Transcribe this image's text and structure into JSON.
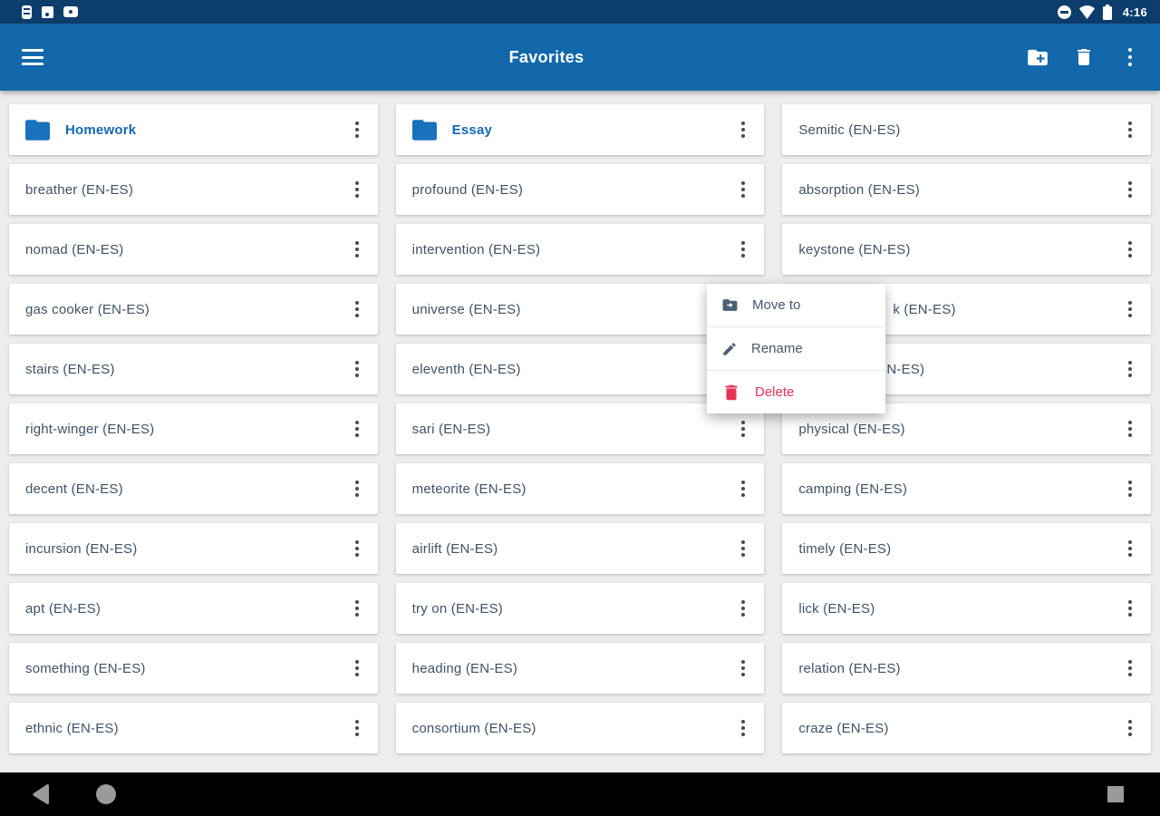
{
  "status_bar": {
    "time": "4:16",
    "left_icons": [
      "device-notification-icon",
      "screenshot-notification-icon",
      "video-notification-icon"
    ],
    "right_icons": [
      "do-not-disturb-icon",
      "wifi-icon",
      "battery-icon"
    ]
  },
  "app_bar": {
    "title": "Favorites",
    "actions": [
      "new-folder",
      "delete",
      "overflow-menu"
    ]
  },
  "grid": {
    "columns": [
      {
        "items": [
          {
            "type": "folder",
            "label": "Homework"
          },
          {
            "type": "entry",
            "label": "breather (EN-ES)"
          },
          {
            "type": "entry",
            "label": "nomad (EN-ES)"
          },
          {
            "type": "entry",
            "label": "gas cooker (EN-ES)"
          },
          {
            "type": "entry",
            "label": "stairs (EN-ES)"
          },
          {
            "type": "entry",
            "label": "right-winger (EN-ES)"
          },
          {
            "type": "entry",
            "label": "decent (EN-ES)"
          },
          {
            "type": "entry",
            "label": "incursion (EN-ES)"
          },
          {
            "type": "entry",
            "label": "apt (EN-ES)"
          },
          {
            "type": "entry",
            "label": "something (EN-ES)"
          },
          {
            "type": "entry",
            "label": "ethnic (EN-ES)"
          }
        ]
      },
      {
        "items": [
          {
            "type": "folder",
            "label": "Essay"
          },
          {
            "type": "entry",
            "label": "profound (EN-ES)"
          },
          {
            "type": "entry",
            "label": "intervention (EN-ES)"
          },
          {
            "type": "entry",
            "label": "universe (EN-ES)"
          },
          {
            "type": "entry",
            "label": "eleventh (EN-ES)"
          },
          {
            "type": "entry",
            "label": "sari (EN-ES)"
          },
          {
            "type": "entry",
            "label": "meteorite (EN-ES)"
          },
          {
            "type": "entry",
            "label": "airlift (EN-ES)"
          },
          {
            "type": "entry",
            "label": "try on (EN-ES)"
          },
          {
            "type": "entry",
            "label": "heading (EN-ES)"
          },
          {
            "type": "entry",
            "label": "consortium (EN-ES)"
          }
        ]
      },
      {
        "items": [
          {
            "type": "entry",
            "label": "Semitic (EN-ES)"
          },
          {
            "type": "entry",
            "label": "absorption (EN-ES)"
          },
          {
            "type": "entry",
            "label": "keystone (EN-ES)"
          },
          {
            "type": "entry",
            "label": "k (EN-ES)",
            "occluded_indent": 104
          },
          {
            "type": "entry",
            "label": "N-ES)",
            "occluded_indent": 97
          },
          {
            "type": "entry",
            "label": "physical (EN-ES)"
          },
          {
            "type": "entry",
            "label": "camping (EN-ES)"
          },
          {
            "type": "entry",
            "label": "timely (EN-ES)"
          },
          {
            "type": "entry",
            "label": "lick (EN-ES)"
          },
          {
            "type": "entry",
            "label": "relation (EN-ES)"
          },
          {
            "type": "entry",
            "label": "craze (EN-ES)"
          }
        ]
      }
    ]
  },
  "context_menu": {
    "items": [
      {
        "label": "Move to",
        "icon": "move-to-folder-icon"
      },
      {
        "label": "Rename",
        "icon": "pencil-icon"
      },
      {
        "label": "Delete",
        "icon": "trash-icon",
        "danger": true
      }
    ]
  },
  "nav_bar": {
    "buttons": [
      "back",
      "home",
      "recents"
    ]
  },
  "colors": {
    "status_bar": "#0d3d6c",
    "app_bar": "#1268ab",
    "background": "#ededed",
    "card": "#ffffff",
    "entry_text": "#3f5266",
    "folder_text": "#1467b3",
    "folder_icon": "#1a72bd",
    "menu_text": "#47566a",
    "delete_red": "#e53253",
    "nav_icon_grey": "#9a9a9a"
  }
}
